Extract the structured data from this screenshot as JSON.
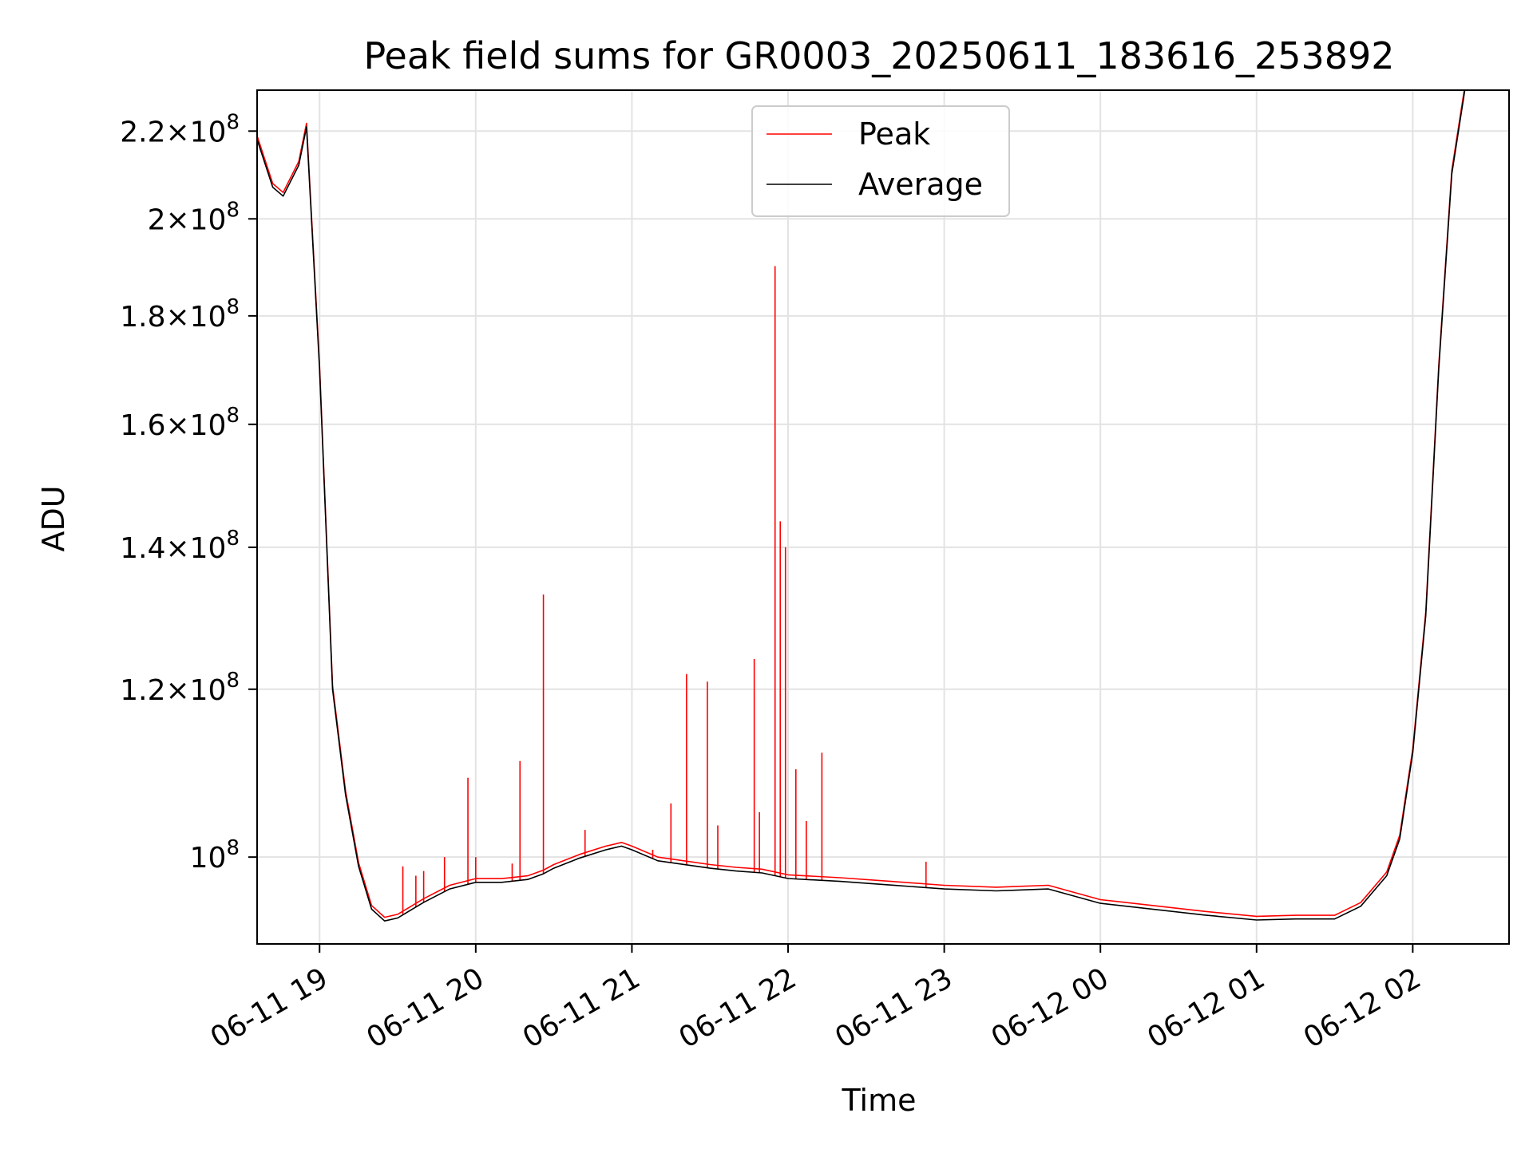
{
  "chart_data": {
    "type": "line",
    "title": "Peak field sums for GR0003_20250611_183616_253892",
    "xlabel": "Time",
    "ylabel": "ADU",
    "yscale": "log",
    "grid": true,
    "legend_position": "upper-center",
    "xlim": [
      "2025-06-11 18:36",
      "2025-06-12 02:37"
    ],
    "ylim": [
      91000000,
      230000000
    ],
    "x_ticks": [
      {
        "t": "2025-06-11 19:00",
        "label": "06-11 19"
      },
      {
        "t": "2025-06-11 20:00",
        "label": "06-11 20"
      },
      {
        "t": "2025-06-11 21:00",
        "label": "06-11 21"
      },
      {
        "t": "2025-06-11 22:00",
        "label": "06-11 22"
      },
      {
        "t": "2025-06-11 23:00",
        "label": "06-11 23"
      },
      {
        "t": "2025-06-12 00:00",
        "label": "06-12 00"
      },
      {
        "t": "2025-06-12 01:00",
        "label": "06-12 01"
      },
      {
        "t": "2025-06-12 02:00",
        "label": "06-12 02"
      }
    ],
    "y_ticks": [
      {
        "value": 100000000,
        "mantissa": "",
        "exponent": "8"
      },
      {
        "value": 120000000,
        "mantissa": "1.2",
        "exponent": "8"
      },
      {
        "value": 140000000,
        "mantissa": "1.4",
        "exponent": "8"
      },
      {
        "value": 160000000,
        "mantissa": "1.6",
        "exponent": "8"
      },
      {
        "value": 180000000,
        "mantissa": "1.8",
        "exponent": "8"
      },
      {
        "value": 200000000,
        "mantissa": "2",
        "exponent": "8"
      },
      {
        "value": 220000000,
        "mantissa": "2.2",
        "exponent": "8"
      }
    ],
    "series": [
      {
        "name": "Average",
        "color": "#000000",
        "x": [
          "2025-06-11 18:36",
          "2025-06-11 18:42",
          "2025-06-11 18:46",
          "2025-06-11 18:52",
          "2025-06-11 18:55",
          "2025-06-11 19:00",
          "2025-06-11 19:05",
          "2025-06-11 19:10",
          "2025-06-11 19:15",
          "2025-06-11 19:20",
          "2025-06-11 19:25",
          "2025-06-11 19:30",
          "2025-06-11 19:40",
          "2025-06-11 19:50",
          "2025-06-11 20:00",
          "2025-06-11 20:10",
          "2025-06-11 20:20",
          "2025-06-11 20:26",
          "2025-06-11 20:30",
          "2025-06-11 20:40",
          "2025-06-11 20:50",
          "2025-06-11 20:56",
          "2025-06-11 21:00",
          "2025-06-11 21:10",
          "2025-06-11 21:20",
          "2025-06-11 21:30",
          "2025-06-11 21:40",
          "2025-06-11 21:50",
          "2025-06-11 22:00",
          "2025-06-11 22:20",
          "2025-06-11 22:40",
          "2025-06-11 23:00",
          "2025-06-11 23:20",
          "2025-06-11 23:40",
          "2025-06-12 00:00",
          "2025-06-12 00:20",
          "2025-06-12 00:40",
          "2025-06-12 01:00",
          "2025-06-12 01:15",
          "2025-06-12 01:30",
          "2025-06-12 01:40",
          "2025-06-12 01:50",
          "2025-06-12 01:55",
          "2025-06-12 02:00",
          "2025-06-12 02:05",
          "2025-06-12 02:10",
          "2025-06-12 02:15",
          "2025-06-12 02:20"
        ],
        "values": [
          218000000,
          207000000,
          205000000,
          212000000,
          221000000,
          170000000,
          120000000,
          107000000,
          99000000,
          94500000,
          93300000,
          93600000,
          95200000,
          96600000,
          97300000,
          97300000,
          97600000,
          98200000,
          98800000,
          99900000,
          100800000,
          101200000,
          100800000,
          99600000,
          99200000,
          98800000,
          98500000,
          98300000,
          97700000,
          97400000,
          97000000,
          96600000,
          96400000,
          96600000,
          95100000,
          94500000,
          93900000,
          93400000,
          93500000,
          93500000,
          94800000,
          98000000,
          102000000,
          112000000,
          130000000,
          170000000,
          210000000,
          230000000
        ]
      },
      {
        "name": "Peak",
        "color": "#ff0000",
        "spikes": [
          {
            "t": "2025-06-11 19:32",
            "value": 99000000
          },
          {
            "t": "2025-06-11 19:37",
            "value": 98000000
          },
          {
            "t": "2025-06-11 19:40",
            "value": 98500000
          },
          {
            "t": "2025-06-11 19:48",
            "value": 100000000
          },
          {
            "t": "2025-06-11 19:57",
            "value": 109000000
          },
          {
            "t": "2025-06-11 20:00",
            "value": 100000000
          },
          {
            "t": "2025-06-11 20:14",
            "value": 99300000
          },
          {
            "t": "2025-06-11 20:17",
            "value": 111000000
          },
          {
            "t": "2025-06-11 20:26",
            "value": 133000000
          },
          {
            "t": "2025-06-11 20:42",
            "value": 103000000
          },
          {
            "t": "2025-06-11 21:08",
            "value": 100800000
          },
          {
            "t": "2025-06-11 21:15",
            "value": 106000000
          },
          {
            "t": "2025-06-11 21:21",
            "value": 122000000
          },
          {
            "t": "2025-06-11 21:29",
            "value": 121000000
          },
          {
            "t": "2025-06-11 21:33",
            "value": 103500000
          },
          {
            "t": "2025-06-11 21:47",
            "value": 124000000
          },
          {
            "t": "2025-06-11 21:49",
            "value": 105000000
          },
          {
            "t": "2025-06-11 21:55",
            "value": 190000000
          },
          {
            "t": "2025-06-11 21:57",
            "value": 144000000
          },
          {
            "t": "2025-06-11 21:59",
            "value": 140000000
          },
          {
            "t": "2025-06-11 22:03",
            "value": 110000000
          },
          {
            "t": "2025-06-11 22:07",
            "value": 104000000
          },
          {
            "t": "2025-06-11 22:13",
            "value": 112000000
          },
          {
            "t": "2025-06-11 22:53",
            "value": 99500000
          }
        ]
      }
    ]
  }
}
